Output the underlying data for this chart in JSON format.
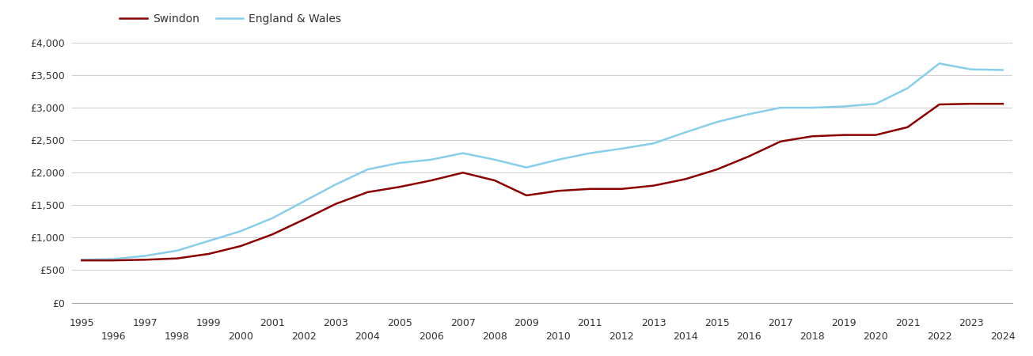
{
  "years": [
    1995,
    1996,
    1997,
    1998,
    1999,
    2000,
    2001,
    2002,
    2003,
    2004,
    2005,
    2006,
    2007,
    2008,
    2009,
    2010,
    2011,
    2012,
    2013,
    2014,
    2015,
    2016,
    2017,
    2018,
    2019,
    2020,
    2021,
    2022,
    2023,
    2024
  ],
  "swindon": [
    650,
    650,
    660,
    680,
    750,
    870,
    1050,
    1280,
    1520,
    1700,
    1780,
    1880,
    2000,
    1880,
    1650,
    1720,
    1750,
    1750,
    1800,
    1900,
    2050,
    2250,
    2480,
    2560,
    2580,
    2580,
    2700,
    3050,
    3060,
    3060
  ],
  "england_wales": [
    660,
    670,
    720,
    800,
    950,
    1100,
    1300,
    1560,
    1820,
    2050,
    2150,
    2200,
    2300,
    2200,
    2080,
    2200,
    2300,
    2370,
    2450,
    2620,
    2780,
    2900,
    3000,
    3000,
    3020,
    3060,
    3300,
    3680,
    3590,
    3580
  ],
  "swindon_color": "#8b0000",
  "england_wales_color": "#87ceeb",
  "background_color": "#ffffff",
  "grid_color": "#d0d0d0",
  "ylim": [
    0,
    4000
  ],
  "yticks": [
    0,
    500,
    1000,
    1500,
    2000,
    2500,
    3000,
    3500,
    4000
  ],
  "legend_labels": [
    "Swindon",
    "England & Wales"
  ],
  "line_width": 1.8,
  "font_color": "#333333"
}
